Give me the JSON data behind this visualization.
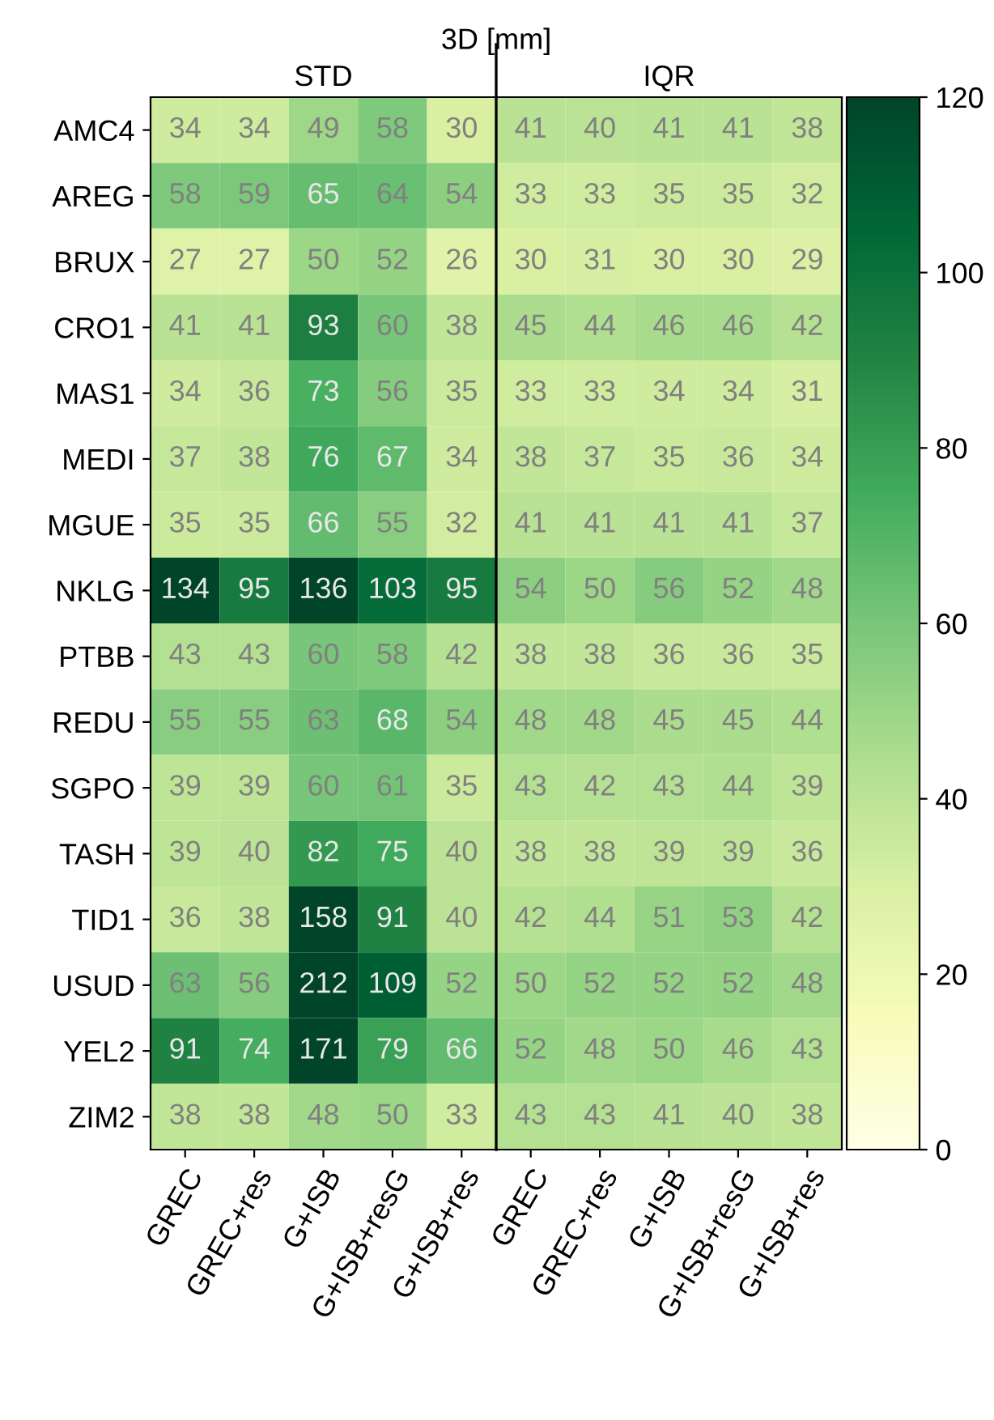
{
  "chart_data": {
    "type": "heatmap",
    "title": "3D [mm]",
    "annotations": [
      "STD",
      "IQR"
    ],
    "categories": [
      "GREC",
      "GREC+res",
      "G+ISB",
      "G+ISB+resG",
      "G+ISB+res",
      "GREC",
      "GREC+res",
      "G+ISB",
      "G+ISB+resG",
      "G+ISB+res"
    ],
    "y_categories": [
      "AMC4",
      "AREG",
      "BRUX",
      "CRO1",
      "MAS1",
      "MEDI",
      "MGUE",
      "NKLG",
      "PTBB",
      "REDU",
      "SGPO",
      "TASH",
      "TID1",
      "USUD",
      "YEL2",
      "ZIM2"
    ],
    "cells": [
      [
        34,
        34,
        49,
        58,
        30,
        41,
        40,
        41,
        41,
        38
      ],
      [
        58,
        59,
        65,
        64,
        54,
        33,
        33,
        35,
        35,
        32
      ],
      [
        27,
        27,
        50,
        52,
        26,
        30,
        31,
        30,
        30,
        29
      ],
      [
        41,
        41,
        93,
        60,
        38,
        45,
        44,
        46,
        46,
        42
      ],
      [
        34,
        36,
        73,
        56,
        35,
        33,
        33,
        34,
        34,
        31
      ],
      [
        37,
        38,
        76,
        67,
        34,
        38,
        37,
        35,
        36,
        34
      ],
      [
        35,
        35,
        66,
        55,
        32,
        41,
        41,
        41,
        41,
        37
      ],
      [
        134,
        95,
        136,
        103,
        95,
        54,
        50,
        56,
        52,
        48
      ],
      [
        43,
        43,
        60,
        58,
        42,
        38,
        38,
        36,
        36,
        35
      ],
      [
        55,
        55,
        63,
        68,
        54,
        48,
        48,
        45,
        45,
        44
      ],
      [
        39,
        39,
        60,
        61,
        35,
        43,
        42,
        43,
        44,
        39
      ],
      [
        39,
        40,
        82,
        75,
        40,
        38,
        38,
        39,
        39,
        36
      ],
      [
        36,
        38,
        158,
        91,
        40,
        42,
        44,
        51,
        53,
        42
      ],
      [
        63,
        56,
        212,
        109,
        52,
        50,
        52,
        52,
        52,
        48
      ],
      [
        91,
        74,
        171,
        79,
        66,
        52,
        48,
        50,
        46,
        43
      ],
      [
        38,
        38,
        48,
        50,
        33,
        43,
        43,
        41,
        40,
        38
      ]
    ],
    "clim": [
      0,
      120
    ],
    "cticks": [
      0,
      20,
      40,
      60,
      80,
      100,
      120
    ],
    "data_labels": true
  }
}
